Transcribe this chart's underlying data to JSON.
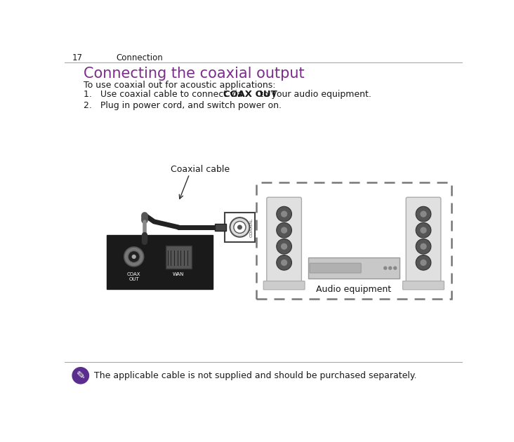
{
  "page_number": "17",
  "page_section": "Connection",
  "title": "Connecting the coaxial output",
  "title_color": "#7B2D8B",
  "intro_text": "To use coaxial out for acoustic applications:",
  "step1_pre": "Use coaxial cable to connect via  ",
  "step1_bold": "COAX OUT",
  "step1_post": " to your audio equipment.",
  "step2": "Plug in power cord, and switch power on.",
  "label_coaxial": "Coaxial cable",
  "label_audio": "Audio equipment",
  "note_text": "The applicable cable is not supplied and should be purchased separately.",
  "bg_color": "#ffffff",
  "text_color": "#1a1a1a",
  "note_icon_color": "#5B2D8E",
  "line_color": "#aaaaaa",
  "dashed_box_color": "#777777",
  "device_panel_color": "#1a1a1a",
  "speaker_body_color": "#e0e0e0",
  "speaker_driver_color": "#555555",
  "receiver_color": "#c8c8c8"
}
